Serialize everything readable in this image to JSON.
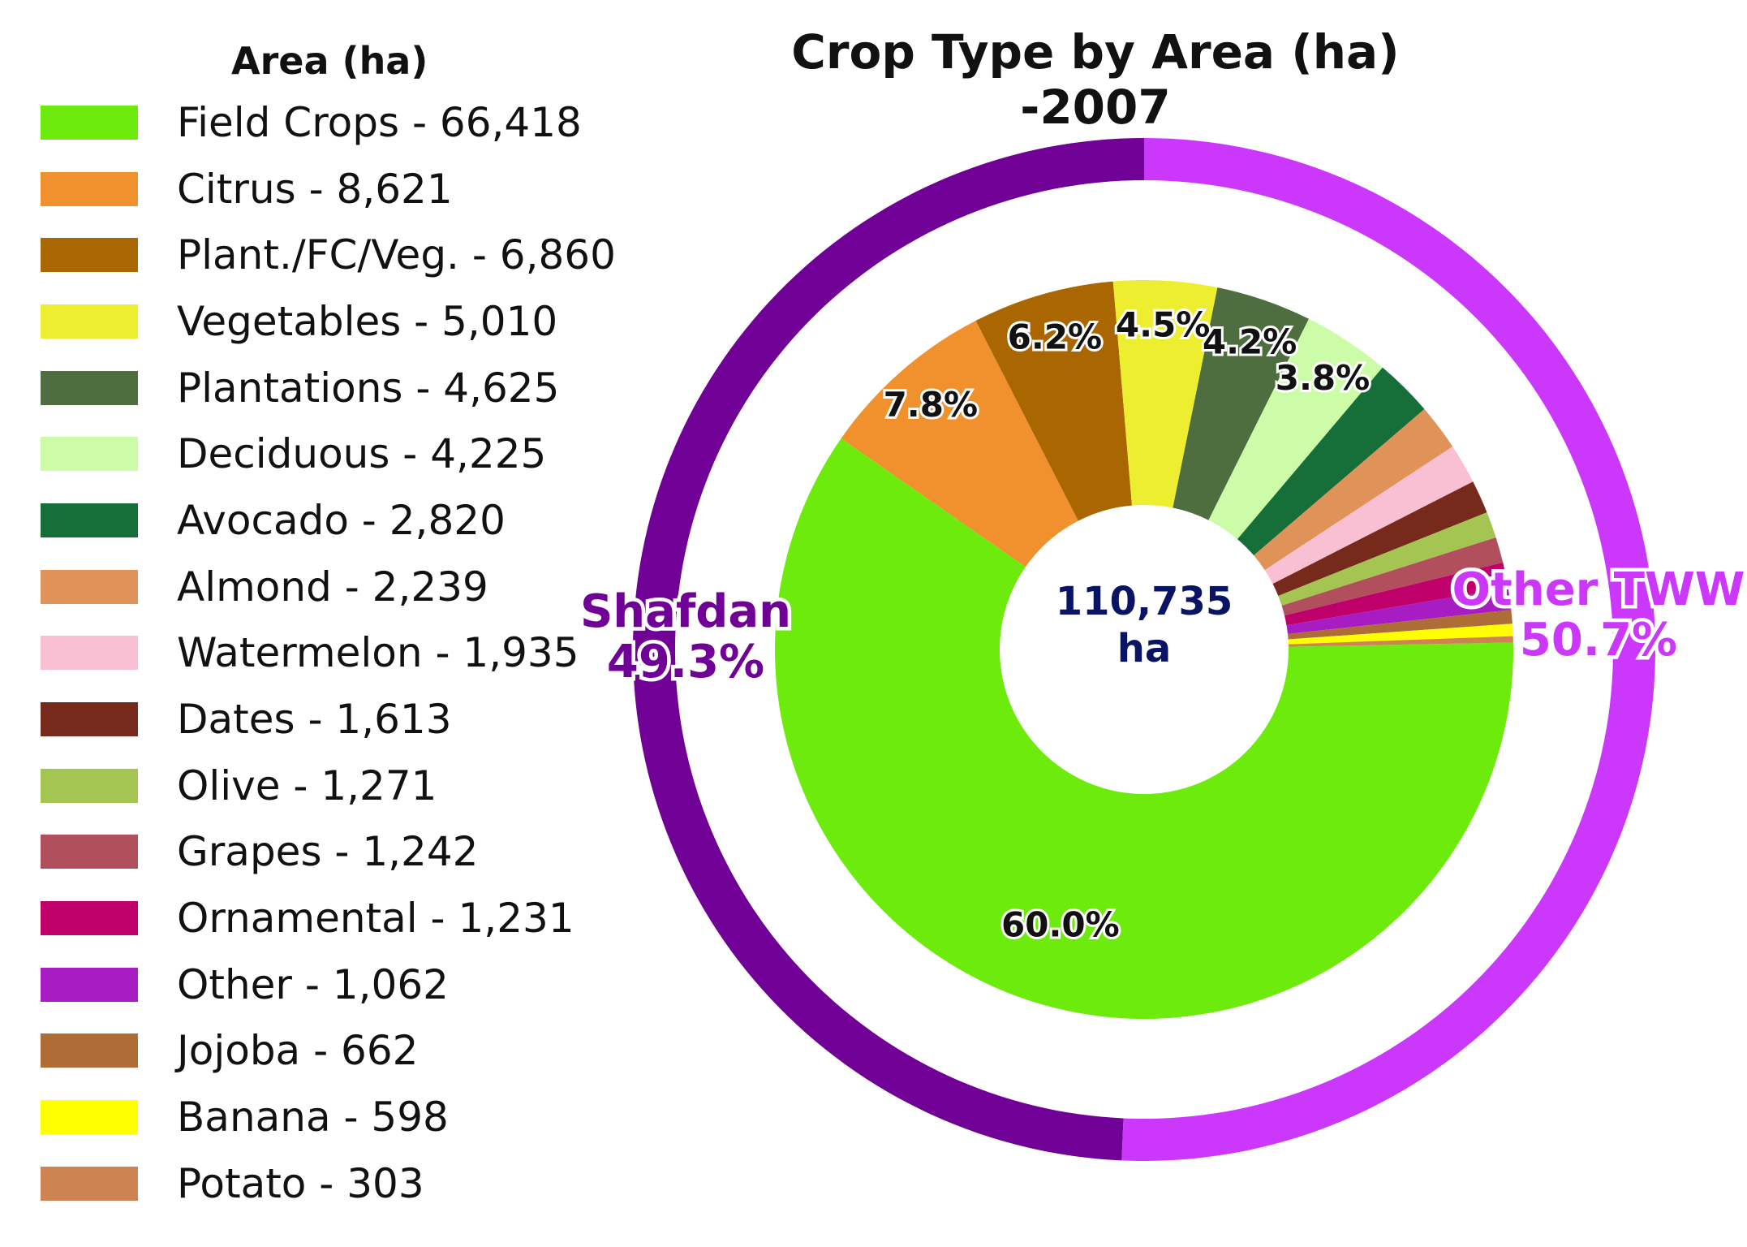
{
  "chart_data": {
    "type": "pie",
    "title": "Crop Type by Area (ha) -2007",
    "legend_title": "Area (ha)",
    "legend_position": "left",
    "center_label": [
      "110,735",
      "ha"
    ],
    "inner_ring": {
      "slices": [
        {
          "label": "Field Crops - 66,418",
          "value": 66418,
          "color": "#6CEB0C",
          "pct_label": "60.0%"
        },
        {
          "label": "Citrus - 8,621",
          "value": 8621,
          "color": "#F0912E",
          "pct_label": "7.8%"
        },
        {
          "label": "Plant./FC/Veg. - 6,860",
          "value": 6860,
          "color": "#AA6600",
          "pct_label": "6.2%"
        },
        {
          "label": "Vegetables - 5,010",
          "value": 5010,
          "color": "#EEEE30",
          "pct_label": "4.5%"
        },
        {
          "label": "Plantations - 4,625",
          "value": 4625,
          "color": "#4E6E3F",
          "pct_label": "4.2%"
        },
        {
          "label": "Deciduous - 4,225",
          "value": 4225,
          "color": "#CCFCA8",
          "pct_label": "3.8%"
        },
        {
          "label": "Avocado - 2,820",
          "value": 2820,
          "color": "#166E38",
          "pct_label": ""
        },
        {
          "label": "Almond - 2,239",
          "value": 2239,
          "color": "#E09358",
          "pct_label": ""
        },
        {
          "label": "Watermelon - 1,935",
          "value": 1935,
          "color": "#F9BFD2",
          "pct_label": ""
        },
        {
          "label": "Dates - 1,613",
          "value": 1613,
          "color": "#762A1C",
          "pct_label": ""
        },
        {
          "label": "Olive - 1,271",
          "value": 1271,
          "color": "#A5C552",
          "pct_label": ""
        },
        {
          "label": "Grapes - 1,242",
          "value": 1242,
          "color": "#B24F5C",
          "pct_label": ""
        },
        {
          "label": "Ornamental - 1,231",
          "value": 1231,
          "color": "#C0006A",
          "pct_label": ""
        },
        {
          "label": "Other - 1,062",
          "value": 1062,
          "color": "#A81CC4",
          "pct_label": ""
        },
        {
          "label": "Jojoba - 662",
          "value": 662,
          "color": "#AE6D36",
          "pct_label": ""
        },
        {
          "label": "Banana - 598",
          "value": 598,
          "color": "#FFFF00",
          "pct_label": ""
        },
        {
          "label": "Potato - 303",
          "value": 303,
          "color": "#CD8452",
          "pct_label": ""
        }
      ]
    },
    "outer_ring": {
      "slices": [
        {
          "name": "Shafdan",
          "pct_label": "49.3%",
          "value": 49.3,
          "color": "#700096"
        },
        {
          "name": "Other TWW",
          "pct_label": "50.7%",
          "value": 50.7,
          "color": "#CB37FB"
        }
      ]
    }
  }
}
